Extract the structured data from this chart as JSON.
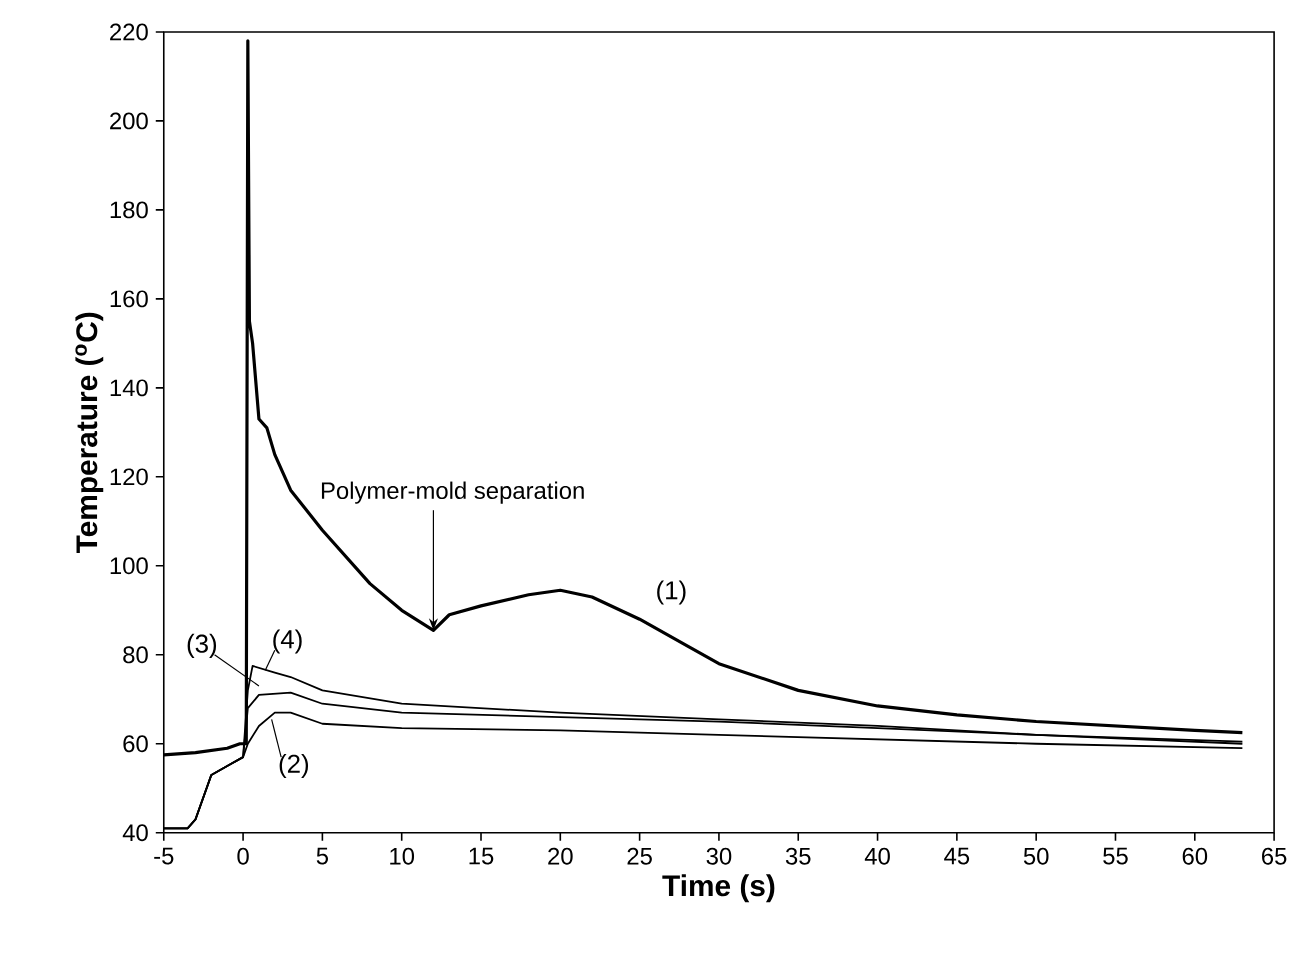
{
  "chart_data": {
    "type": "line",
    "xlabel": "Time (s)",
    "ylabel": "Temperature ($^{o}$C)",
    "xlim": [
      -5,
      65
    ],
    "ylim": [
      40,
      220
    ],
    "xticks": [
      -5,
      0,
      5,
      10,
      15,
      20,
      25,
      30,
      35,
      40,
      45,
      50,
      55,
      60,
      65
    ],
    "yticks": [
      40,
      60,
      80,
      100,
      120,
      140,
      160,
      180,
      200,
      220
    ],
    "annotations": [
      {
        "text": "Polymer-mold separation",
        "x": 12,
        "y": 85.5
      }
    ],
    "series": [
      {
        "name": "(1)",
        "color": "#000000",
        "x": [
          -5,
          -3,
          -1,
          -0.2,
          0.2,
          0.3,
          0.4,
          0.6,
          1,
          1.5,
          2,
          3,
          5,
          8,
          10,
          12,
          13,
          15,
          18,
          20,
          22,
          25,
          28,
          30,
          35,
          40,
          45,
          50,
          55,
          60,
          63
        ],
        "values": [
          57.5,
          58,
          59,
          60,
          60,
          218,
          155,
          150,
          133,
          131,
          125,
          117,
          108,
          96,
          90,
          85.5,
          89,
          91,
          93.5,
          94.5,
          93,
          88,
          82,
          78,
          72,
          68.5,
          66.5,
          65,
          64,
          63,
          62.5
        ]
      },
      {
        "name": "(2)",
        "color": "#000000",
        "x": [
          -5,
          -3.5,
          -3,
          -2,
          -1,
          0,
          0.3,
          1,
          2,
          3,
          5,
          10,
          20,
          30,
          40,
          50,
          63
        ],
        "values": [
          41,
          41,
          43,
          53,
          55,
          57,
          60,
          64,
          67,
          67,
          64.5,
          63.5,
          63,
          62,
          61,
          60,
          59
        ]
      },
      {
        "name": "(3)",
        "color": "#000000",
        "x": [
          -5,
          -3.5,
          -3,
          -2,
          -1,
          0,
          0.3,
          1,
          3,
          5,
          10,
          20,
          30,
          40,
          50,
          63
        ],
        "values": [
          41,
          41,
          43,
          53,
          55,
          57,
          68,
          71,
          71.5,
          69,
          67,
          66,
          65,
          63.5,
          62,
          60
        ]
      },
      {
        "name": "(4)",
        "color": "#000000",
        "x": [
          -5,
          -3.5,
          -3,
          -2,
          -1,
          0,
          0.3,
          0.6,
          2,
          3,
          5,
          10,
          20,
          30,
          40,
          50,
          63
        ],
        "values": [
          41,
          41,
          43,
          53,
          55,
          57,
          72,
          77.5,
          76,
          75,
          72,
          69,
          67,
          65.5,
          64,
          62,
          60.5
        ]
      }
    ]
  }
}
